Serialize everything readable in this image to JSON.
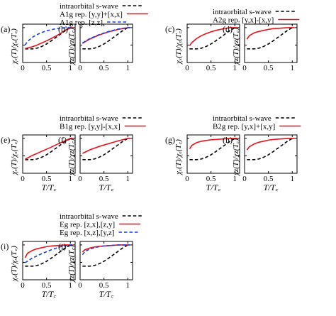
{
  "colors": {
    "swave": "#000000",
    "rep1": "#e8101a",
    "rep2": "#1a3fe0",
    "frame": "#000000"
  },
  "chart_data": [
    {
      "type": "line",
      "panel": "a",
      "ylabel": "χₓ(T)/χₓ(T꜀)",
      "xlabel": "",
      "xlim": [
        0,
        1.1
      ],
      "ylim": [
        0,
        1.1
      ],
      "xticks": [
        0,
        0.5,
        1
      ],
      "yticks": [
        0,
        0.5,
        1
      ],
      "series": [
        {
          "name": "intraorbital s-wave",
          "style": "dash",
          "color": "#000000",
          "x": [
            0.05,
            0.2,
            0.3,
            0.4,
            0.5,
            0.6,
            0.7,
            0.8,
            0.9,
            1.0,
            1.05
          ],
          "y": [
            0.39,
            0.39,
            0.41,
            0.46,
            0.53,
            0.62,
            0.72,
            0.82,
            0.92,
            1.0,
            1.0
          ]
        },
        {
          "name": "A1g rep. [y,y]+[x,x]",
          "style": "solid",
          "color": "#e8101a",
          "x": [
            0.05,
            0.2,
            0.3,
            0.4,
            0.5,
            0.6,
            0.7,
            0.8,
            0.9,
            1.0,
            1.05
          ],
          "y": [
            0.4,
            0.45,
            0.5,
            0.56,
            0.62,
            0.69,
            0.76,
            0.84,
            0.93,
            1.0,
            1.0
          ]
        },
        {
          "name": "A1g rep. [z,z]",
          "style": "dash",
          "color": "#1a3fe0",
          "x": [
            0.05,
            0.1,
            0.2,
            0.3,
            0.4,
            0.5,
            0.6,
            0.7,
            0.8,
            0.9,
            1.0,
            1.05
          ],
          "y": [
            0.5,
            0.6,
            0.72,
            0.8,
            0.86,
            0.91,
            0.94,
            0.97,
            0.99,
            1.0,
            1.0,
            1.0
          ]
        }
      ]
    },
    {
      "type": "line",
      "panel": "b",
      "ylabel": "χz(T)/χz(T꜀)",
      "xlabel": "",
      "xlim": [
        0,
        1.1
      ],
      "ylim": [
        0,
        1.1
      ],
      "xticks": [
        0,
        0.5,
        1
      ],
      "yticks": [
        0,
        0.5,
        1
      ],
      "series": [
        {
          "name": "intraorbital s-wave",
          "style": "dash",
          "color": "#000000",
          "x": [
            0.05,
            0.2,
            0.3,
            0.4,
            0.5,
            0.6,
            0.7,
            0.8,
            0.9,
            1.0,
            1.05
          ],
          "y": [
            0.39,
            0.39,
            0.41,
            0.46,
            0.53,
            0.62,
            0.72,
            0.82,
            0.92,
            1.0,
            1.0
          ]
        },
        {
          "name": "A1g rep. [y,y]+[x,x]",
          "style": "solid",
          "color": "#e8101a",
          "x": [
            0.05,
            0.2,
            0.4,
            0.6,
            0.8,
            1.0,
            1.05
          ],
          "y": [
            0.55,
            0.67,
            0.79,
            0.88,
            0.95,
            1.0,
            1.0
          ]
        },
        {
          "name": "A1g rep. [z,z]",
          "style": "dash",
          "color": "#1a3fe0",
          "x": [
            0.05,
            0.2,
            0.4,
            0.6,
            0.8,
            1.0,
            1.05
          ],
          "y": [
            0.56,
            0.68,
            0.8,
            0.89,
            0.96,
            1.0,
            1.0
          ]
        }
      ]
    },
    {
      "type": "line",
      "panel": "c",
      "ylabel": "χₓ(T)/χₓ(T꜀)",
      "xlabel": "",
      "xlim": [
        0,
        1.1
      ],
      "ylim": [
        0,
        1.1
      ],
      "xticks": [
        0,
        0.5,
        1
      ],
      "yticks": [
        0,
        0.5,
        1
      ],
      "series": [
        {
          "name": "intraorbital s-wave",
          "style": "dash",
          "color": "#000000",
          "x": [
            0.05,
            0.2,
            0.3,
            0.4,
            0.5,
            0.6,
            0.7,
            0.8,
            0.9,
            1.0,
            1.05
          ],
          "y": [
            0.39,
            0.39,
            0.41,
            0.46,
            0.53,
            0.62,
            0.72,
            0.82,
            0.92,
            1.0,
            1.0
          ]
        },
        {
          "name": "A2g rep. [y,x]-[x,y]",
          "style": "solid",
          "color": "#e8101a",
          "x": [
            0.05,
            0.1,
            0.2,
            0.3,
            0.4,
            0.5,
            0.6,
            0.7,
            0.8,
            0.9,
            1.0,
            1.05
          ],
          "y": [
            0.48,
            0.57,
            0.69,
            0.77,
            0.83,
            0.88,
            0.92,
            0.95,
            0.98,
            1.0,
            1.0,
            1.0
          ]
        }
      ]
    },
    {
      "type": "line",
      "panel": "d",
      "ylabel": "χz(T)/χz(T꜀)",
      "xlabel": "",
      "xlim": [
        0,
        1.1
      ],
      "ylim": [
        0,
        1.1
      ],
      "xticks": [
        0,
        0.5,
        1
      ],
      "yticks": [
        0,
        0.5,
        1
      ],
      "series": [
        {
          "name": "intraorbital s-wave",
          "style": "dash",
          "color": "#000000",
          "x": [
            0.05,
            0.2,
            0.3,
            0.4,
            0.5,
            0.6,
            0.7,
            0.8,
            0.9,
            1.0,
            1.05
          ],
          "y": [
            0.39,
            0.39,
            0.41,
            0.46,
            0.53,
            0.62,
            0.72,
            0.82,
            0.92,
            1.0,
            1.0
          ]
        },
        {
          "name": "A2g rep. [y,x]-[x,y]",
          "style": "solid",
          "color": "#e8101a",
          "x": [
            0.05,
            0.1,
            0.2,
            0.3,
            0.4,
            0.5,
            0.6,
            0.7,
            0.8,
            0.9,
            1.0,
            1.05
          ],
          "y": [
            0.67,
            0.77,
            0.85,
            0.89,
            0.92,
            0.95,
            0.97,
            0.98,
            0.99,
            1.0,
            1.0,
            1.0
          ]
        }
      ]
    },
    {
      "type": "line",
      "panel": "e",
      "ylabel": "χₓ(T)/χₓ(T꜀)",
      "xlabel": "T/T꜀",
      "xlim": [
        0,
        1.1
      ],
      "ylim": [
        0,
        1.1
      ],
      "xticks": [
        0,
        0.5,
        1
      ],
      "yticks": [
        0,
        0.5,
        1
      ],
      "series": [
        {
          "name": "intraorbital s-wave",
          "style": "dash",
          "color": "#000000",
          "x": [
            0.05,
            0.2,
            0.3,
            0.4,
            0.5,
            0.6,
            0.7,
            0.8,
            0.9,
            1.0,
            1.05
          ],
          "y": [
            0.39,
            0.39,
            0.41,
            0.46,
            0.53,
            0.62,
            0.72,
            0.82,
            0.92,
            1.0,
            1.0
          ]
        },
        {
          "name": "B1g rep. [y,y]-[x,x]",
          "style": "solid",
          "color": "#e8101a",
          "x": [
            0.05,
            0.2,
            0.4,
            0.6,
            0.8,
            1.0,
            1.05
          ],
          "y": [
            0.4,
            0.51,
            0.63,
            0.75,
            0.88,
            1.0,
            1.0
          ]
        }
      ]
    },
    {
      "type": "line",
      "panel": "f",
      "ylabel": "χz(T)/χz(T꜀)",
      "xlabel": "T/T꜀",
      "xlim": [
        0,
        1.1
      ],
      "ylim": [
        0,
        1.1
      ],
      "xticks": [
        0,
        0.5,
        1
      ],
      "yticks": [
        0,
        0.5,
        1
      ],
      "series": [
        {
          "name": "intraorbital s-wave",
          "style": "dash",
          "color": "#000000",
          "x": [
            0.05,
            0.2,
            0.3,
            0.4,
            0.5,
            0.6,
            0.7,
            0.8,
            0.9,
            1.0,
            1.05
          ],
          "y": [
            0.39,
            0.39,
            0.41,
            0.46,
            0.53,
            0.62,
            0.72,
            0.82,
            0.92,
            1.0,
            1.0
          ]
        },
        {
          "name": "B1g rep. [y,y]-[x,x]",
          "style": "solid",
          "color": "#e8101a",
          "x": [
            0.05,
            0.2,
            0.4,
            0.6,
            0.8,
            1.0,
            1.05
          ],
          "y": [
            0.57,
            0.67,
            0.77,
            0.85,
            0.93,
            1.0,
            1.0
          ]
        }
      ]
    },
    {
      "type": "line",
      "panel": "g",
      "ylabel": "χₓ(T)/χₓ(T꜀)",
      "xlabel": "T/T꜀",
      "xlim": [
        0,
        1.1
      ],
      "ylim": [
        0,
        1.1
      ],
      "xticks": [
        0,
        0.5,
        1
      ],
      "yticks": [
        0,
        0.5,
        1
      ],
      "series": [
        {
          "name": "intraorbital s-wave",
          "style": "dash",
          "color": "#000000",
          "x": [
            0.05,
            0.2,
            0.3,
            0.4,
            0.5,
            0.6,
            0.7,
            0.8,
            0.9,
            1.0,
            1.05
          ],
          "y": [
            0.39,
            0.39,
            0.41,
            0.46,
            0.53,
            0.62,
            0.72,
            0.82,
            0.92,
            1.0,
            1.0
          ]
        },
        {
          "name": "B2g rep. [y,x]+[x,y]",
          "style": "solid",
          "color": "#e8101a",
          "x": [
            0.05,
            0.1,
            0.2,
            0.3,
            0.4,
            0.5,
            0.6,
            0.7,
            0.8,
            0.9,
            1.0,
            1.05
          ],
          "y": [
            0.7,
            0.8,
            0.88,
            0.92,
            0.94,
            0.96,
            0.97,
            0.98,
            0.99,
            1.0,
            1.0,
            1.0
          ]
        }
      ]
    },
    {
      "type": "line",
      "panel": "h",
      "ylabel": "χz(T)/χz(T꜀)",
      "xlabel": "T/T꜀",
      "xlim": [
        0,
        1.1
      ],
      "ylim": [
        0,
        1.1
      ],
      "xticks": [
        0,
        0.5,
        1
      ],
      "yticks": [
        0,
        0.5,
        1
      ],
      "series": [
        {
          "name": "intraorbital s-wave",
          "style": "dash",
          "color": "#000000",
          "x": [
            0.05,
            0.2,
            0.3,
            0.4,
            0.5,
            0.6,
            0.7,
            0.8,
            0.9,
            1.0,
            1.05
          ],
          "y": [
            0.39,
            0.39,
            0.41,
            0.46,
            0.53,
            0.62,
            0.72,
            0.82,
            0.92,
            1.0,
            1.0
          ]
        },
        {
          "name": "B2g rep. [y,x]+[x,y]",
          "style": "solid",
          "color": "#e8101a",
          "x": [
            0.05,
            0.1,
            0.2,
            0.3,
            0.4,
            0.5,
            0.6,
            0.7,
            0.8,
            0.9,
            1.0,
            1.05
          ],
          "y": [
            0.67,
            0.76,
            0.84,
            0.89,
            0.92,
            0.95,
            0.97,
            0.98,
            0.99,
            1.0,
            1.0,
            1.0
          ]
        }
      ]
    },
    {
      "type": "line",
      "panel": "i",
      "ylabel": "χₓ(T)/χₓ(T꜀)",
      "xlabel": "T/T꜀",
      "xlim": [
        0,
        1.1
      ],
      "ylim": [
        0,
        1.1
      ],
      "xticks": [
        0,
        0.5,
        1
      ],
      "yticks": [
        0,
        0.5,
        1
      ],
      "series": [
        {
          "name": "intraorbital s-wave",
          "style": "dash",
          "color": "#000000",
          "x": [
            0.05,
            0.2,
            0.3,
            0.4,
            0.5,
            0.6,
            0.7,
            0.8,
            0.9,
            1.0,
            1.05
          ],
          "y": [
            0.39,
            0.39,
            0.41,
            0.46,
            0.53,
            0.62,
            0.72,
            0.82,
            0.92,
            1.0,
            1.0
          ]
        },
        {
          "name": "Eg rep. [z,x],[z,y]",
          "style": "solid",
          "color": "#e8101a",
          "x": [
            0.05,
            0.1,
            0.2,
            0.3,
            0.4,
            0.5,
            0.6,
            0.7,
            0.8,
            0.9,
            1.0,
            1.05
          ],
          "y": [
            0.63,
            0.76,
            0.84,
            0.89,
            0.92,
            0.95,
            0.97,
            0.98,
            0.99,
            1.0,
            1.0,
            1.0
          ]
        },
        {
          "name": "Eg rep. [x,z],[y,z]",
          "style": "dash",
          "color": "#1a3fe0",
          "x": [
            0.05,
            0.2,
            0.4,
            0.6,
            0.8,
            1.0,
            1.05
          ],
          "y": [
            0.49,
            0.62,
            0.75,
            0.86,
            0.95,
            1.0,
            1.0
          ]
        }
      ]
    },
    {
      "type": "line",
      "panel": "j",
      "ylabel": "χz(T)/χz(T꜀)",
      "xlabel": "T/T꜀",
      "xlim": [
        0,
        1.1
      ],
      "ylim": [
        0,
        1.1
      ],
      "xticks": [
        0,
        0.5,
        1
      ],
      "yticks": [
        0,
        0.5,
        1
      ],
      "series": [
        {
          "name": "intraorbital s-wave",
          "style": "dash",
          "color": "#000000",
          "x": [
            0.05,
            0.2,
            0.3,
            0.4,
            0.5,
            0.6,
            0.7,
            0.8,
            0.9,
            1.0,
            1.05
          ],
          "y": [
            0.39,
            0.39,
            0.41,
            0.46,
            0.53,
            0.62,
            0.72,
            0.82,
            0.92,
            1.0,
            1.0
          ]
        },
        {
          "name": "Eg rep. [z,x],[z,y]",
          "style": "solid",
          "color": "#e8101a",
          "x": [
            0.05,
            0.1,
            0.2,
            0.3,
            0.4,
            0.5,
            0.6,
            0.7,
            0.8,
            0.9,
            1.0,
            1.05
          ],
          "y": [
            0.8,
            0.86,
            0.91,
            0.94,
            0.96,
            0.97,
            0.98,
            0.99,
            1.0,
            1.0,
            1.0,
            1.0
          ]
        },
        {
          "name": "Eg rep. [x,z],[y,z]",
          "style": "dash",
          "color": "#1a3fe0",
          "x": [
            0.05,
            0.1,
            0.2,
            0.3,
            0.4,
            0.5,
            0.6,
            0.7,
            0.8,
            0.9,
            1.0,
            1.05
          ],
          "y": [
            0.72,
            0.81,
            0.88,
            0.92,
            0.95,
            0.97,
            0.98,
            0.99,
            1.0,
            1.0,
            1.0,
            1.0
          ]
        }
      ]
    }
  ],
  "legends": [
    {
      "entries": [
        {
          "label": "intraorbital s-wave",
          "style": "dash",
          "color": "#000000"
        },
        {
          "label": "A1g rep. [y,y]+[x,x]",
          "style": "solid",
          "color": "#e8101a"
        },
        {
          "label": "A1g rep. [z,z]",
          "style": "dash",
          "color": "#1a3fe0"
        }
      ]
    },
    {
      "entries": [
        {
          "label": "intraorbital s-wave",
          "style": "dash",
          "color": "#000000"
        },
        {
          "label": "A2g rep. [y,x]-[x,y]",
          "style": "solid",
          "color": "#e8101a"
        }
      ]
    },
    {
      "entries": [
        {
          "label": "intraorbital s-wave",
          "style": "dash",
          "color": "#000000"
        },
        {
          "label": "B1g rep. [y,y]-[x,x]",
          "style": "solid",
          "color": "#e8101a"
        }
      ]
    },
    {
      "entries": [
        {
          "label": "intraorbital s-wave",
          "style": "dash",
          "color": "#000000"
        },
        {
          "label": "B2g rep. [y,x]+[x,y]",
          "style": "solid",
          "color": "#e8101a"
        }
      ]
    },
    {
      "entries": [
        {
          "label": "intraorbital s-wave",
          "style": "dash",
          "color": "#000000"
        },
        {
          "label": "Eg rep. [z,x],[z,y]",
          "style": "solid",
          "color": "#e8101a"
        },
        {
          "label": "Eg rep. [x,z],[y,z]",
          "style": "dash",
          "color": "#1a3fe0"
        }
      ]
    }
  ]
}
